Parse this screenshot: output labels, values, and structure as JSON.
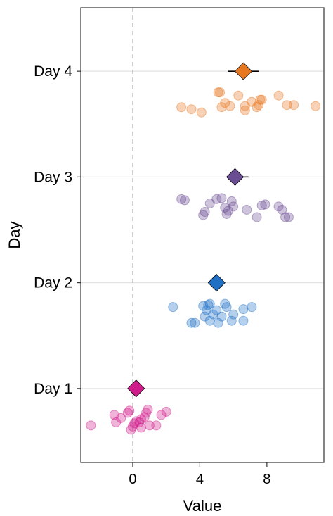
{
  "chart_data": {
    "type": "scatter",
    "title": "",
    "xlabel": "Value",
    "ylabel": "Day",
    "xlim": [
      -3.1,
      11.4
    ],
    "ylim": [
      0.3,
      4.6
    ],
    "x_ticks": [
      0,
      4,
      8
    ],
    "x_tick_labels": [
      "0",
      "4",
      "8"
    ],
    "categories": [
      "Day 1",
      "Day 2",
      "Day 3",
      "Day 4"
    ],
    "reference_line_x": 0,
    "grid": "horizontal at categories",
    "colors": {
      "Day 1": "#d01c8b",
      "Day 2": "#1f6fc4",
      "Day 3": "#6a4c93",
      "Day 4": "#e87722"
    },
    "series": [
      {
        "category": "Day 1",
        "mean": 0.2,
        "ci": [
          0.2,
          0.2
        ],
        "points": [
          {
            "x": -2.5,
            "y": 0.65
          },
          {
            "x": -1.1,
            "y": 0.75
          },
          {
            "x": -1.0,
            "y": 0.68
          },
          {
            "x": -0.7,
            "y": 0.72
          },
          {
            "x": -0.3,
            "y": 0.77
          },
          {
            "x": -0.2,
            "y": 0.79
          },
          {
            "x": -0.1,
            "y": 0.61
          },
          {
            "x": 0.0,
            "y": 0.64
          },
          {
            "x": 0.1,
            "y": 0.67
          },
          {
            "x": 0.2,
            "y": 0.69
          },
          {
            "x": 0.4,
            "y": 0.68
          },
          {
            "x": 0.5,
            "y": 0.71
          },
          {
            "x": 0.5,
            "y": 0.63
          },
          {
            "x": 0.7,
            "y": 0.73
          },
          {
            "x": 0.8,
            "y": 0.77
          },
          {
            "x": 0.9,
            "y": 0.8
          },
          {
            "x": 1.0,
            "y": 0.65
          },
          {
            "x": 1.4,
            "y": 0.65
          },
          {
            "x": 1.7,
            "y": 0.75
          },
          {
            "x": 2.0,
            "y": 0.78
          }
        ]
      },
      {
        "category": "Day 2",
        "mean": 5.0,
        "ci": [
          4.8,
          5.2
        ],
        "points": [
          {
            "x": 2.4,
            "y": 1.77
          },
          {
            "x": 3.5,
            "y": 1.62
          },
          {
            "x": 3.7,
            "y": 1.62
          },
          {
            "x": 4.2,
            "y": 1.78
          },
          {
            "x": 4.3,
            "y": 1.68
          },
          {
            "x": 4.4,
            "y": 1.74
          },
          {
            "x": 4.5,
            "y": 1.79
          },
          {
            "x": 4.6,
            "y": 1.8
          },
          {
            "x": 4.6,
            "y": 1.64
          },
          {
            "x": 4.8,
            "y": 1.7
          },
          {
            "x": 5.0,
            "y": 1.74
          },
          {
            "x": 5.1,
            "y": 1.62
          },
          {
            "x": 5.3,
            "y": 1.68
          },
          {
            "x": 5.5,
            "y": 1.8
          },
          {
            "x": 5.6,
            "y": 1.77
          },
          {
            "x": 5.9,
            "y": 1.64
          },
          {
            "x": 6.0,
            "y": 1.7
          },
          {
            "x": 6.6,
            "y": 1.75
          },
          {
            "x": 6.6,
            "y": 1.64
          },
          {
            "x": 7.1,
            "y": 1.77
          }
        ]
      },
      {
        "category": "Day 3",
        "mean": 6.1,
        "ci": [
          5.6,
          6.9
        ],
        "points": [
          {
            "x": 2.9,
            "y": 2.79
          },
          {
            "x": 3.1,
            "y": 2.78
          },
          {
            "x": 4.2,
            "y": 2.64
          },
          {
            "x": 4.3,
            "y": 2.67
          },
          {
            "x": 4.6,
            "y": 2.75
          },
          {
            "x": 5.0,
            "y": 2.79
          },
          {
            "x": 5.3,
            "y": 2.8
          },
          {
            "x": 5.5,
            "y": 2.71
          },
          {
            "x": 5.6,
            "y": 2.65
          },
          {
            "x": 5.7,
            "y": 2.68
          },
          {
            "x": 5.9,
            "y": 2.77
          },
          {
            "x": 6.0,
            "y": 2.72
          },
          {
            "x": 6.8,
            "y": 2.69
          },
          {
            "x": 7.4,
            "y": 2.62
          },
          {
            "x": 7.7,
            "y": 2.73
          },
          {
            "x": 7.9,
            "y": 2.74
          },
          {
            "x": 8.7,
            "y": 2.72
          },
          {
            "x": 8.9,
            "y": 2.69
          },
          {
            "x": 9.1,
            "y": 2.62
          },
          {
            "x": 9.3,
            "y": 2.62
          }
        ]
      },
      {
        "category": "Day 4",
        "mean": 6.6,
        "ci": [
          5.7,
          7.5
        ],
        "points": [
          {
            "x": 2.9,
            "y": 3.66
          },
          {
            "x": 3.5,
            "y": 3.64
          },
          {
            "x": 4.1,
            "y": 3.61
          },
          {
            "x": 5.1,
            "y": 3.8
          },
          {
            "x": 5.2,
            "y": 3.8
          },
          {
            "x": 5.3,
            "y": 3.66
          },
          {
            "x": 5.5,
            "y": 3.7
          },
          {
            "x": 5.8,
            "y": 3.67
          },
          {
            "x": 6.3,
            "y": 3.77
          },
          {
            "x": 6.7,
            "y": 3.63
          },
          {
            "x": 6.7,
            "y": 3.67
          },
          {
            "x": 7.1,
            "y": 3.71
          },
          {
            "x": 7.4,
            "y": 3.66
          },
          {
            "x": 7.5,
            "y": 3.68
          },
          {
            "x": 7.6,
            "y": 3.73
          },
          {
            "x": 7.7,
            "y": 3.73
          },
          {
            "x": 8.7,
            "y": 3.77
          },
          {
            "x": 9.2,
            "y": 3.68
          },
          {
            "x": 9.6,
            "y": 3.68
          },
          {
            "x": 10.9,
            "y": 3.67
          }
        ]
      }
    ]
  }
}
